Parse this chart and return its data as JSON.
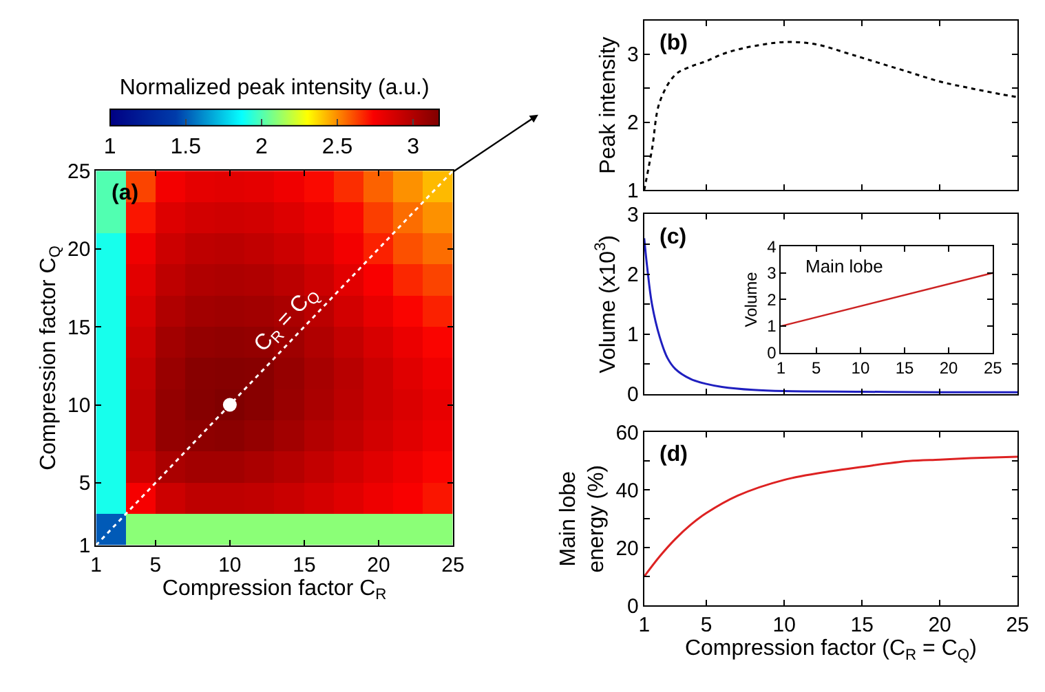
{
  "chart_data": [
    {
      "type": "heatmap",
      "xlabel": "Compression factor C$_{R}$",
      "ylabel": "Compression factor C$_{Q}$",
      "clabel": "Normalized peak intensity (a.u.)",
      "x": [
        2,
        4,
        6,
        8,
        10,
        12,
        14,
        16,
        18,
        20,
        22,
        24
      ],
      "y": [
        24,
        22,
        20,
        18,
        16,
        14,
        12,
        10,
        8,
        6,
        4,
        2
      ],
      "cells": [
        [
          2.0,
          2.62,
          2.76,
          2.81,
          2.82,
          2.81,
          2.77,
          2.72,
          2.66,
          2.57,
          2.49,
          2.42
        ],
        [
          2.0,
          2.7,
          2.84,
          2.88,
          2.89,
          2.88,
          2.84,
          2.79,
          2.72,
          2.63,
          2.55,
          2.49
        ],
        [
          1.9,
          2.77,
          2.9,
          2.95,
          2.96,
          2.94,
          2.9,
          2.84,
          2.76,
          2.68,
          2.6,
          2.55
        ],
        [
          1.9,
          2.82,
          2.95,
          3.0,
          3.01,
          3.0,
          2.96,
          2.9,
          2.82,
          2.74,
          2.67,
          2.62
        ],
        [
          1.9,
          2.86,
          3.0,
          3.05,
          3.06,
          3.05,
          3.02,
          2.96,
          2.88,
          2.8,
          2.73,
          2.68
        ],
        [
          1.9,
          2.9,
          3.05,
          3.1,
          3.11,
          3.1,
          3.06,
          3.0,
          2.93,
          2.86,
          2.79,
          2.73
        ],
        [
          1.9,
          2.93,
          3.08,
          3.14,
          3.15,
          3.14,
          3.09,
          3.03,
          2.97,
          2.9,
          2.83,
          2.77
        ],
        [
          1.9,
          2.95,
          3.1,
          3.15,
          3.17,
          3.14,
          3.08,
          3.02,
          2.96,
          2.9,
          2.85,
          2.8
        ],
        [
          1.9,
          2.95,
          3.1,
          3.12,
          3.13,
          3.1,
          3.05,
          2.99,
          2.94,
          2.88,
          2.83,
          2.78
        ],
        [
          1.9,
          2.9,
          3.02,
          3.05,
          3.05,
          3.02,
          2.98,
          2.93,
          2.88,
          2.83,
          2.78,
          2.73
        ],
        [
          1.9,
          2.75,
          2.9,
          2.95,
          2.95,
          2.94,
          2.91,
          2.87,
          2.83,
          2.78,
          2.74,
          2.7
        ],
        [
          1.5,
          2.1,
          2.1,
          2.1,
          2.1,
          2.1,
          2.1,
          2.1,
          2.1,
          2.1,
          2.1,
          2.1
        ]
      ],
      "clim": [
        1,
        3.17
      ],
      "cticks": [
        1,
        1.5,
        2,
        2.5,
        3
      ],
      "xlim": [
        1,
        25
      ],
      "xticks": [
        1,
        5,
        10,
        15,
        20,
        25
      ],
      "ylim": [
        1,
        25
      ],
      "yticks": [
        1,
        5,
        10,
        15,
        20,
        25
      ],
      "series": [
        {
          "type": "line",
          "name": "C$_{R}$ = C$_{Q}$",
          "x": [
            1,
            25
          ],
          "values": [
            1,
            25
          ],
          "color": "#ffffff",
          "line_style": "dotted"
        },
        {
          "type": "scatter",
          "x": [
            10
          ],
          "values": [
            10
          ],
          "color": "#ffffff",
          "marker": "circle"
        }
      ],
      "annotations": [
        "(a)"
      ]
    },
    {
      "type": "line",
      "ylabel": "Peak intensity",
      "tick_labels": "y",
      "line_style": "dotted",
      "x": [
        1,
        1.5,
        2,
        3,
        4,
        5,
        6,
        7,
        8,
        10,
        12,
        14,
        15,
        16,
        18,
        20,
        22,
        24,
        25
      ],
      "series": [
        {
          "color": "#000000",
          "values": [
            1.0,
            1.6,
            2.3,
            2.7,
            2.82,
            2.9,
            3.0,
            3.07,
            3.12,
            3.18,
            3.15,
            3.02,
            2.95,
            2.88,
            2.74,
            2.6,
            2.5,
            2.41,
            2.37
          ]
        }
      ],
      "xlim": [
        1,
        25
      ],
      "xticks": [
        1,
        5,
        10,
        15,
        20,
        25
      ],
      "ylim": [
        1,
        3.5
      ],
      "yticks": [
        1,
        {
          "value": 1.5,
          "label": null
        },
        2,
        {
          "value": 2.5,
          "label": null
        },
        3
      ],
      "annotations": [
        "(b)"
      ]
    },
    {
      "type": "line",
      "ylabel": "Volume (x10$^{3}$)",
      "tick_labels": "y",
      "x": [
        1,
        1.2,
        1.5,
        2,
        2.5,
        3,
        4,
        5,
        6,
        8,
        10,
        15,
        20,
        25
      ],
      "series": [
        {
          "color": "#1f1fbf",
          "values": [
            2.6,
            2.1,
            1.5,
            0.95,
            0.6,
            0.42,
            0.25,
            0.17,
            0.12,
            0.07,
            0.05,
            0.04,
            0.03,
            0.03
          ]
        }
      ],
      "xlim": [
        1,
        25
      ],
      "xticks": [
        1,
        5,
        10,
        15,
        20,
        25
      ],
      "ylim": [
        0,
        3
      ],
      "yticks": [
        0,
        {
          "value": 0.5,
          "label": null
        },
        1,
        {
          "value": 1.5,
          "label": null
        },
        2,
        {
          "value": 2.5,
          "label": null
        },
        3
      ],
      "annotations": [
        "(c)"
      ]
    },
    {
      "type": "line",
      "title": "Main lobe",
      "ylabel": "Volume",
      "x": [
        1,
        25
      ],
      "series": [
        {
          "color": "#cc2222",
          "values": [
            1.0,
            3.0
          ]
        }
      ],
      "xlim": [
        1,
        25
      ],
      "xticks": [
        1,
        5,
        10,
        15,
        20,
        25
      ],
      "ylim": [
        0,
        4
      ],
      "yticks": [
        0,
        1,
        2,
        3,
        4
      ]
    },
    {
      "type": "line",
      "ylabel": "Main lobe\nenergy (%)",
      "xlabel": "Compression factor (C$_{R}$ = C$_{Q}$)",
      "x": [
        1,
        2,
        3,
        4,
        5,
        7,
        10,
        13,
        15,
        18,
        20,
        22,
        25
      ],
      "series": [
        {
          "color": "#dd2222",
          "values": [
            10,
            17,
            23,
            28,
            32,
            38,
            43.5,
            46.5,
            48,
            50,
            50.5,
            51,
            51.5
          ]
        }
      ],
      "xlim": [
        1,
        25
      ],
      "xticks": [
        1,
        5,
        10,
        15,
        20,
        25
      ],
      "ylim": [
        0,
        60
      ],
      "yticks": [
        0,
        {
          "value": 10,
          "label": null
        },
        20,
        {
          "value": 30,
          "label": null
        },
        40,
        {
          "value": 50,
          "label": null
        },
        60
      ],
      "annotations": [
        "(d)"
      ]
    }
  ]
}
